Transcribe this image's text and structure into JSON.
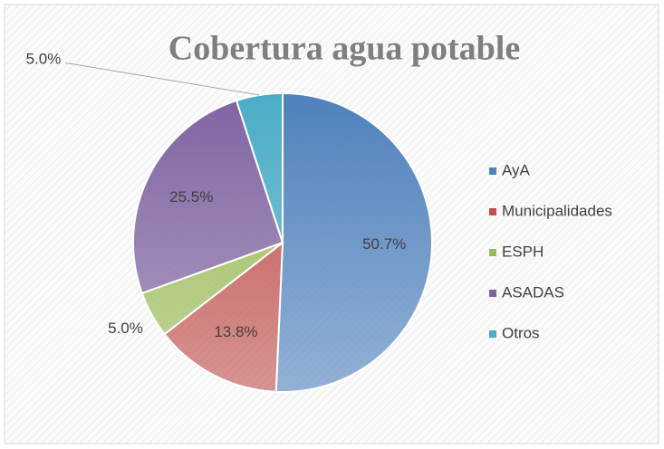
{
  "chart_data": {
    "type": "pie",
    "title": "Cobertura agua potable",
    "categories": [
      "AyA",
      "Municipalidades",
      "ESPH",
      "ASADAS",
      "Otros"
    ],
    "values": [
      50.7,
      13.8,
      5.0,
      25.5,
      5.0
    ],
    "value_labels": [
      "50.7%",
      "13.8%",
      "5.0%",
      "25.5%",
      "5.0%"
    ],
    "colors": [
      "#4f81bd",
      "#c0504d",
      "#9bbb59",
      "#8064a2",
      "#4bacc6"
    ],
    "legend": "right"
  }
}
